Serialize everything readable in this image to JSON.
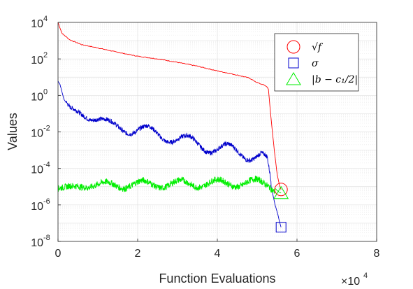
{
  "chart_data": {
    "type": "line",
    "xlabel": "Function Evaluations",
    "ylabel": "Values",
    "x_multiplier_label": "×10",
    "x_multiplier_exp": "4",
    "x_ticks": [
      "0",
      "2",
      "4",
      "6",
      "8"
    ],
    "xlim": [
      0,
      80000
    ],
    "y_scale": "log",
    "ylim": [
      1e-08,
      10000.0
    ],
    "y_ticks": [
      {
        "base": "10",
        "exp": "4"
      },
      {
        "base": "10",
        "exp": "2"
      },
      {
        "base": "10",
        "exp": "0"
      },
      {
        "base": "10",
        "exp": "-2"
      },
      {
        "base": "10",
        "exp": "-4"
      },
      {
        "base": "10",
        "exp": "-6"
      },
      {
        "base": "10",
        "exp": "-8"
      }
    ],
    "grid": true,
    "legend_position": "top-right",
    "series": [
      {
        "name": "√f",
        "color": "#ff0000",
        "marker": "circle",
        "marker_point": [
          56000,
          7e-06
        ],
        "x": [
          0,
          1000,
          3000,
          6000,
          10000,
          15000,
          20000,
          25000,
          30000,
          35000,
          40000,
          45000,
          48000,
          50000,
          52000,
          52800,
          53500,
          54300,
          55000,
          55600,
          56000
        ],
        "y": [
          10000,
          2500,
          1100,
          600,
          400,
          230,
          140,
          100,
          65,
          40,
          22,
          13,
          9,
          5,
          3.5,
          2.5,
          0.05,
          0.001,
          5e-05,
          1.2e-05,
          7e-06
        ]
      },
      {
        "name": "σ",
        "color": "#0000cc",
        "marker": "square",
        "marker_point": [
          56000,
          6e-08
        ],
        "x": [
          0,
          500,
          1500,
          3000,
          5000,
          8000,
          10000,
          13000,
          16000,
          20000,
          24000,
          28000,
          32000,
          36000,
          40000,
          44000,
          48000,
          51000,
          52500,
          53500,
          54500,
          55200,
          55600,
          56000
        ],
        "y": [
          6,
          4,
          0.6,
          0.2,
          0.13,
          0.06,
          0.05,
          0.025,
          0.018,
          0.013,
          0.008,
          0.006,
          0.003,
          0.002,
          0.0012,
          0.0009,
          0.0006,
          0.0005,
          0.0002,
          1e-05,
          1e-06,
          3e-07,
          1.2e-07,
          6e-08
        ]
      },
      {
        "name": "|b − c₁/2|",
        "color": "#00ee00",
        "marker": "triangle",
        "marker_point": [
          56000,
          4.5e-06
        ],
        "x": [
          0,
          3000,
          6000,
          10000,
          15000,
          20000,
          25000,
          30000,
          35000,
          40000,
          45000,
          50000,
          53000,
          54500,
          55500,
          56000
        ],
        "y": [
          8e-06,
          1e-05,
          1.1e-05,
          1.2e-05,
          1.3e-05,
          1.3e-05,
          1.4e-05,
          1.4e-05,
          1.5e-05,
          1.5e-05,
          1.6e-05,
          1.6e-05,
          1.4e-05,
          8e-06,
          5e-06,
          4.5e-06
        ]
      }
    ]
  }
}
